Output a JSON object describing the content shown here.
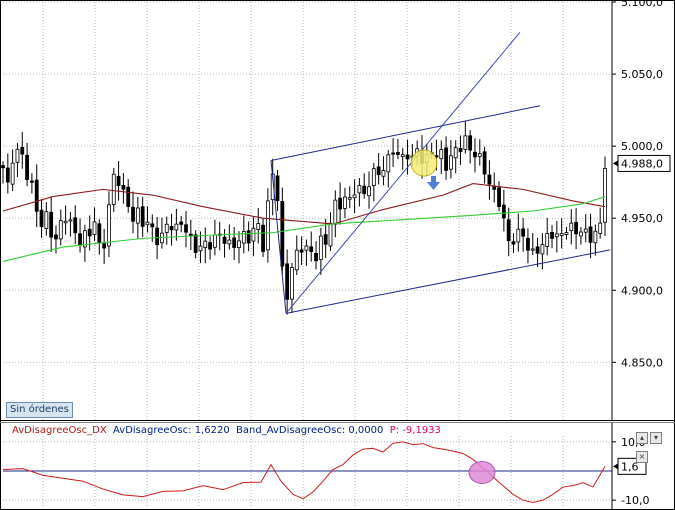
{
  "main_panel": {
    "order_button": "Sin órdenes",
    "last_price_label": "4.988,0"
  },
  "osc_panel": {
    "title_name": "AvDisagreeOsc_DX",
    "title_value": "AvDisagreeOsc: 1,6220",
    "title_band": "Band_AvDisagreeOsc: 0,0000",
    "title_p": "P: -9,1933",
    "value_label": "1,6",
    "buttons": [
      "▴",
      "▾",
      "×"
    ]
  },
  "colors": {
    "background": "#ffffff",
    "grid": "#b7b7b7",
    "candle": "#000000",
    "ma_slow": "#8b1a1a",
    "ma_green": "#33cc33",
    "channel": "#1e2a8c",
    "trendline": "#3a4ab0",
    "signal_circle": "#f6ec7a",
    "signal_arrow": "#4f80d8",
    "osc_line": "#cc1c1c",
    "osc_band": "#1e2a8c",
    "osc_circle": "#e08ad8"
  },
  "chart_data": [
    {
      "type": "candlestick",
      "title": "",
      "ylim": [
        4810,
        5100
      ],
      "y_ticks": [
        "5.100,0",
        "5.050,0",
        "5.000,0",
        "4.950,0",
        "4.900,0",
        "4.850,0"
      ],
      "y_tick_values": [
        5100,
        5050,
        5000,
        4950,
        4900,
        4850
      ],
      "grid": true,
      "bars": 126,
      "close_path": [
        [
          0,
          4985
        ],
        [
          5,
          4972
        ],
        [
          9,
          4992
        ],
        [
          13,
          4990
        ],
        [
          15,
          4998
        ],
        [
          20,
          4993
        ],
        [
          24,
          4980
        ],
        [
          28,
          4975
        ],
        [
          33,
          4958
        ],
        [
          38,
          4945
        ],
        [
          43,
          4952
        ],
        [
          48,
          4940
        ],
        [
          53,
          4935
        ],
        [
          57,
          4945
        ],
        [
          62,
          4952
        ],
        [
          67,
          4947
        ],
        [
          72,
          4940
        ],
        [
          77,
          4934
        ],
        [
          82,
          4938
        ],
        [
          88,
          4940
        ],
        [
          93,
          4952
        ],
        [
          96,
          4930
        ],
        [
          100,
          4928
        ],
        [
          103,
          4940
        ],
        [
          105,
          4955
        ],
        [
          108,
          4965
        ],
        [
          112,
          4985
        ],
        [
          116,
          4975
        ],
        [
          120,
          4968
        ],
        [
          124,
          4960
        ],
        [
          128,
          4955
        ],
        [
          131,
          4948
        ],
        [
          134,
          4955
        ],
        [
          137,
          4950
        ],
        [
          141,
          4945
        ],
        [
          145,
          4948
        ],
        [
          150,
          4940
        ],
        [
          154,
          4935
        ],
        [
          159,
          4938
        ],
        [
          164,
          4945
        ],
        [
          168,
          4946
        ],
        [
          172,
          4940
        ],
        [
          176,
          4948
        ],
        [
          181,
          4945
        ],
        [
          186,
          4938
        ],
        [
          190,
          4930
        ],
        [
          195,
          4928
        ],
        [
          200,
          4933
        ],
        [
          205,
          4930
        ],
        [
          210,
          4935
        ],
        [
          215,
          4938
        ],
        [
          220,
          4937
        ],
        [
          225,
          4932
        ],
        [
          230,
          4930
        ],
        [
          235,
          4935
        ],
        [
          240,
          4938
        ],
        [
          245,
          4935
        ],
        [
          250,
          4942
        ],
        [
          255,
          4945
        ],
        [
          260,
          4930
        ],
        [
          264,
          4955
        ],
        [
          268,
          4975
        ],
        [
          271,
          4985
        ],
        [
          275,
          4962
        ],
        [
          278,
          4920
        ],
        [
          281,
          4905
        ],
        [
          284,
          4895
        ],
        [
          287,
          4910
        ],
        [
          290,
          4920
        ],
        [
          294,
          4925
        ],
        [
          298,
          4930
        ],
        [
          302,
          4928
        ],
        [
          306,
          4932
        ],
        [
          310,
          4920
        ],
        [
          314,
          4925
        ],
        [
          318,
          4935
        ],
        [
          322,
          4930
        ],
        [
          326,
          4945
        ],
        [
          330,
          4955
        ],
        [
          334,
          4962
        ],
        [
          338,
          4958
        ],
        [
          342,
          4965
        ],
        [
          346,
          4960
        ],
        [
          350,
          4968
        ],
        [
          354,
          4972
        ],
        [
          358,
          4970
        ],
        [
          362,
          4965
        ],
        [
          366,
          4975
        ],
        [
          370,
          4982
        ],
        [
          374,
          4978
        ],
        [
          378,
          4986
        ],
        [
          382,
          4984
        ],
        [
          386,
          4992
        ],
        [
          390,
          4998
        ],
        [
          394,
          4995
        ],
        [
          398,
          4990
        ],
        [
          402,
          4994
        ],
        [
          406,
          4995
        ],
        [
          410,
          4990
        ],
        [
          414,
          4998
        ],
        [
          418,
          4992
        ],
        [
          422,
          4988
        ],
        [
          426,
          4994
        ],
        [
          430,
          4997
        ],
        [
          434,
          4993
        ],
        [
          438,
          4995
        ],
        [
          442,
          4985
        ],
        [
          446,
          4990
        ],
        [
          450,
          4995
        ],
        [
          454,
          4998
        ],
        [
          458,
          5000
        ],
        [
          462,
          5005
        ],
        [
          466,
          4998
        ],
        [
          470,
          4996
        ],
        [
          474,
          4994
        ],
        [
          478,
          4990
        ],
        [
          482,
          4982
        ],
        [
          486,
          4975
        ],
        [
          490,
          4968
        ],
        [
          494,
          4965
        ],
        [
          498,
          4958
        ],
        [
          502,
          4945
        ],
        [
          506,
          4932
        ],
        [
          510,
          4935
        ],
        [
          514,
          4938
        ],
        [
          518,
          4942
        ],
        [
          522,
          4935
        ],
        [
          526,
          4928
        ],
        [
          530,
          4925
        ],
        [
          534,
          4928
        ],
        [
          538,
          4930
        ],
        [
          542,
          4935
        ],
        [
          546,
          4938
        ],
        [
          550,
          4940
        ],
        [
          554,
          4937
        ],
        [
          558,
          4938
        ],
        [
          562,
          4942
        ],
        [
          566,
          4945
        ],
        [
          570,
          4942
        ],
        [
          574,
          4940
        ],
        [
          578,
          4942
        ],
        [
          582,
          4940
        ],
        [
          586,
          4935
        ],
        [
          590,
          4938
        ],
        [
          594,
          4942
        ],
        [
          598,
          4945
        ],
        [
          602,
          4988
        ]
      ],
      "ma_slow_path": [
        [
          0,
          4955
        ],
        [
          50,
          4965
        ],
        [
          100,
          4970
        ],
        [
          150,
          4966
        ],
        [
          200,
          4958
        ],
        [
          260,
          4950
        ],
        [
          330,
          4946
        ],
        [
          380,
          4956
        ],
        [
          440,
          4966
        ],
        [
          470,
          4974
        ],
        [
          520,
          4970
        ],
        [
          570,
          4962
        ],
        [
          602,
          4958
        ]
      ],
      "ma_green_path": [
        [
          0,
          4920
        ],
        [
          60,
          4930
        ],
        [
          140,
          4936
        ],
        [
          200,
          4938
        ],
        [
          270,
          4940
        ],
        [
          330,
          4946
        ],
        [
          400,
          4949
        ],
        [
          470,
          4952
        ],
        [
          530,
          4955
        ],
        [
          580,
          4960
        ],
        [
          602,
          4965
        ]
      ],
      "channel_upper": [
        [
          268,
          4990
        ],
        [
          537,
          5028
        ]
      ],
      "channel_lower": [
        [
          283,
          4884
        ],
        [
          607,
          4928
        ]
      ],
      "trendline": [
        [
          283,
          4884
        ],
        [
          517,
          5079
        ]
      ],
      "last_price": 4988
    },
    {
      "type": "line",
      "title": "",
      "ylim": [
        -12,
        12
      ],
      "y_ticks": [
        "10,0",
        "-10,0"
      ],
      "y_tick_values": [
        10,
        -10
      ],
      "band": 0,
      "last_value": 1.6,
      "series_path": [
        [
          0,
          0.5
        ],
        [
          20,
          0.8
        ],
        [
          40,
          -1.5
        ],
        [
          60,
          -2.5
        ],
        [
          80,
          -3.5
        ],
        [
          100,
          -6.2
        ],
        [
          120,
          -8.2
        ],
        [
          140,
          -8.8
        ],
        [
          160,
          -7.0
        ],
        [
          180,
          -6.8
        ],
        [
          200,
          -5.0
        ],
        [
          220,
          -6.4
        ],
        [
          240,
          -4.0
        ],
        [
          258,
          -3.8
        ],
        [
          268,
          2.2
        ],
        [
          278,
          -3.5
        ],
        [
          290,
          -8.0
        ],
        [
          300,
          -9.5
        ],
        [
          310,
          -7.2
        ],
        [
          320,
          -3.5
        ],
        [
          330,
          0.5
        ],
        [
          340,
          2.2
        ],
        [
          350,
          5.5
        ],
        [
          360,
          7.5
        ],
        [
          370,
          7.8
        ],
        [
          380,
          6.5
        ],
        [
          390,
          9.5
        ],
        [
          400,
          10.0
        ],
        [
          410,
          9.0
        ],
        [
          420,
          9.4
        ],
        [
          430,
          8.0
        ],
        [
          440,
          7.5
        ],
        [
          450,
          6.8
        ],
        [
          460,
          6.0
        ],
        [
          470,
          4.0
        ],
        [
          480,
          1.0
        ],
        [
          490,
          -2.0
        ],
        [
          500,
          -5.0
        ],
        [
          510,
          -8.0
        ],
        [
          520,
          -10.0
        ],
        [
          530,
          -10.8
        ],
        [
          540,
          -10.0
        ],
        [
          550,
          -8.0
        ],
        [
          560,
          -5.5
        ],
        [
          570,
          -5.0
        ],
        [
          580,
          -4.0
        ],
        [
          590,
          -5.5
        ],
        [
          602,
          1.6
        ]
      ]
    }
  ]
}
